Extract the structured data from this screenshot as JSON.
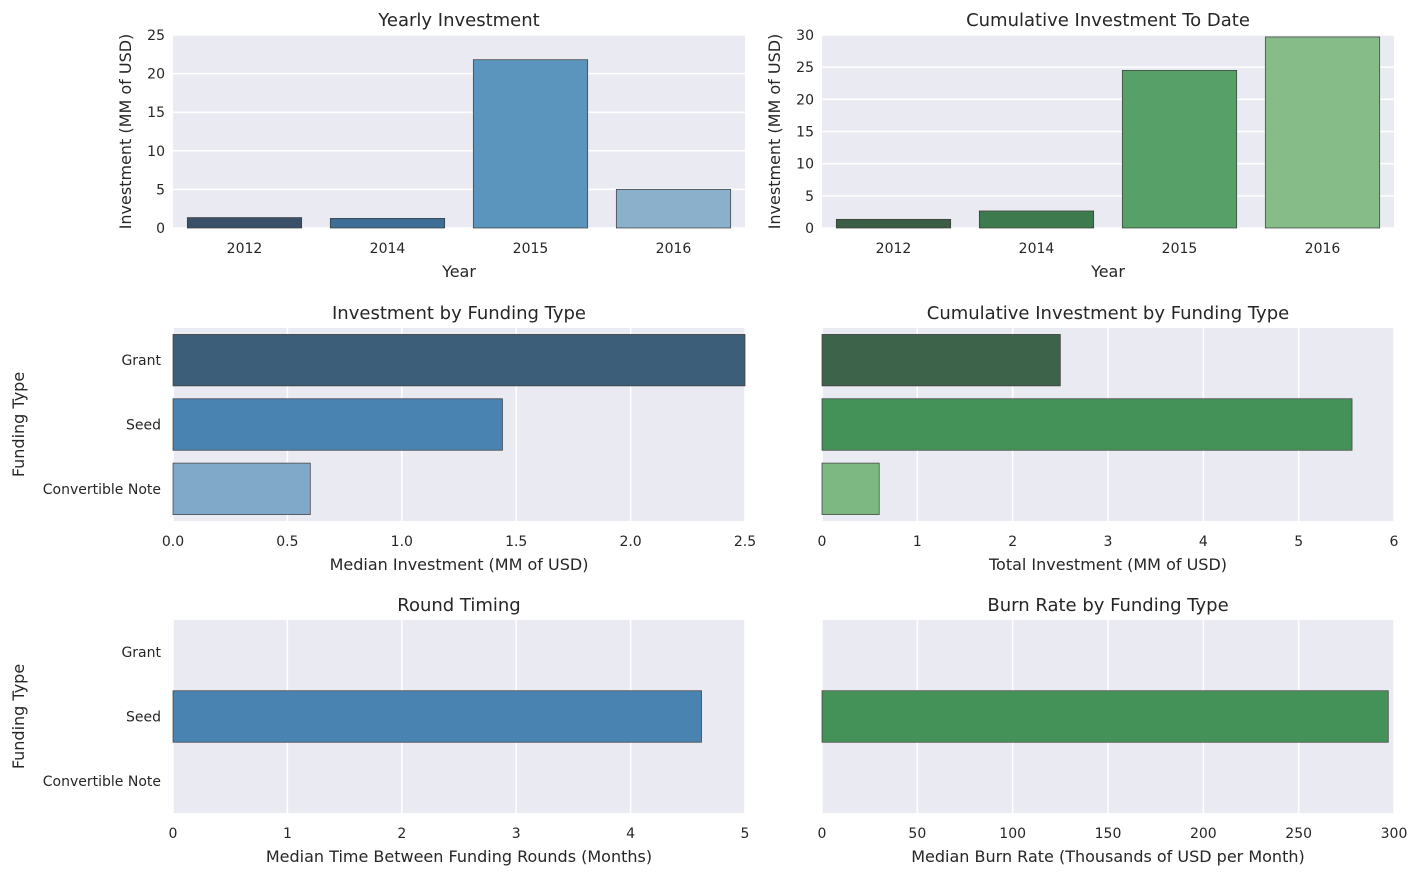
{
  "chart_data": [
    {
      "id": "yearly",
      "type": "bar",
      "orientation": "vertical",
      "title": "Yearly Investment",
      "xlabel": "Year",
      "ylabel": "Investment (MM of USD)",
      "categories": [
        "2012",
        "2014",
        "2015",
        "2016"
      ],
      "values": [
        1.35,
        1.25,
        21.8,
        5.0
      ],
      "colors": [
        "#3a5068",
        "#3d6e96",
        "#5b94bc",
        "#8ab0cc"
      ],
      "ylim": [
        0,
        25
      ],
      "ticks": [
        0,
        5,
        10,
        15,
        20,
        25
      ],
      "grid": true
    },
    {
      "id": "cumulative",
      "type": "bar",
      "orientation": "vertical",
      "title": "Cumulative Investment To Date",
      "xlabel": "Year",
      "ylabel": "Investment (MM of USD)",
      "categories": [
        "2012",
        "2014",
        "2015",
        "2016"
      ],
      "values": [
        1.35,
        2.65,
        24.5,
        29.7
      ],
      "colors": [
        "#3b5e45",
        "#3d7a4e",
        "#57a067",
        "#86bc88"
      ],
      "ylim": [
        0,
        30
      ],
      "ticks": [
        0,
        5,
        10,
        15,
        20,
        25,
        30
      ],
      "grid": true
    },
    {
      "id": "by_type",
      "type": "bar",
      "orientation": "horizontal",
      "title": "Investment by Funding Type",
      "xlabel": "Median Investment (MM of USD)",
      "ylabel": "Funding Type",
      "categories": [
        "Grant",
        "Seed",
        "Convertible Note"
      ],
      "values": [
        2.5,
        1.44,
        0.6
      ],
      "colors": [
        "#3d5e78",
        "#4883b1",
        "#80a8c8"
      ],
      "xlim": [
        0,
        2.5
      ],
      "ticks": [
        "0.0",
        "0.5",
        "1.0",
        "1.5",
        "2.0",
        "2.5"
      ],
      "grid": true
    },
    {
      "id": "cum_by_type",
      "type": "bar",
      "orientation": "horizontal",
      "title": "Cumulative Investment by Funding Type",
      "xlabel": "Total Investment (MM of USD)",
      "ylabel": "",
      "categories": [
        "Grant",
        "Seed",
        "Convertible Note"
      ],
      "values": [
        2.5,
        5.56,
        0.6
      ],
      "colors": [
        "#3d644a",
        "#459258",
        "#7db882"
      ],
      "xlim": [
        0,
        6
      ],
      "ticks": [
        0,
        1,
        2,
        3,
        4,
        5,
        6
      ],
      "grid": true
    },
    {
      "id": "timing",
      "type": "bar",
      "orientation": "horizontal",
      "title": "Round Timing",
      "xlabel": "Median Time Between Funding Rounds (Months)",
      "ylabel": "Funding Type",
      "categories": [
        "Grant",
        "Seed",
        "Convertible Note"
      ],
      "values": [
        null,
        4.62,
        null
      ],
      "colors": [
        "#4883b1",
        "#4883b1",
        "#4883b1"
      ],
      "xlim": [
        0,
        5
      ],
      "ticks": [
        0,
        1,
        2,
        3,
        4,
        5
      ],
      "grid": true
    },
    {
      "id": "burn",
      "type": "bar",
      "orientation": "horizontal",
      "title": "Burn Rate by Funding Type",
      "xlabel": "Median Burn Rate (Thousands of USD per Month)",
      "ylabel": "",
      "categories": [
        "Grant",
        "Seed",
        "Convertible Note"
      ],
      "values": [
        null,
        297,
        null
      ],
      "colors": [
        "#459258",
        "#459258",
        "#459258"
      ],
      "xlim": [
        0,
        300
      ],
      "ticks": [
        0,
        50,
        100,
        150,
        200,
        250,
        300
      ],
      "grid": true
    }
  ]
}
